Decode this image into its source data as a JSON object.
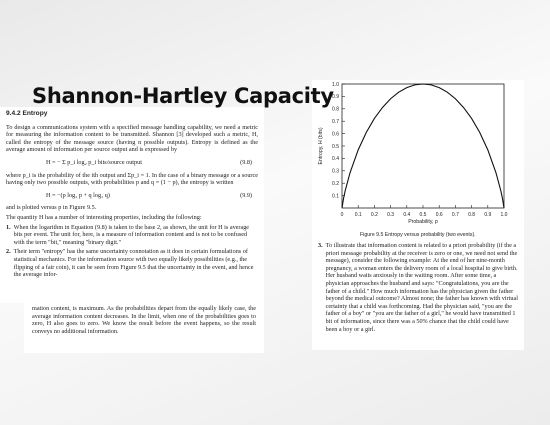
{
  "slide": {
    "title": "Shannon-Hartley Capacity"
  },
  "section": {
    "heading": "9.4.2 Entropy"
  },
  "paragraphs": {
    "intro": "To design a communications system with a specified message handling capability, we need a metric for measuring the information content to be transmitted. Shannon [3] developed such a metric, H, called the entropy of the message source (having n possible outputs). Entropy is defined as the average amount of information per source output and is expressed by",
    "where": "where p_i is the probability of the ith output and Σp_i = 1. In the case of a binary message or a source having only two possible outputs, with probabilities p and q = (1 − p), the entropy is written",
    "plotted": "and is plotted versus p in Figure 9.5.",
    "props": "The quantity H has a number of interesting properties, including the following:",
    "bottom": "mation content, is maximum. As the probabilities depart from the equally likely case, the average information content decreases. In the limit, when one of the probabilities goes to zero, H also goes to zero. We know the result before the event happens, so the result conveys no additional information."
  },
  "equations": [
    {
      "expr": "H = − Σ p_i log₂ p_i   bits/source output",
      "num": "(9.8)"
    },
    {
      "expr": "H = −(p log₂ p + q log₂ q)",
      "num": "(9.9)"
    }
  ],
  "list_items": [
    {
      "n": "1.",
      "text": "When the logarithm in Equation (9.8) is taken to the base 2, as shown, the unit for H is average bits per event. The unit for, here, is a measure of information content and is not to be confused with the term \"bit,\" meaning \"binary digit.\""
    },
    {
      "n": "2.",
      "text": "Their term \"entropy\" has the same uncertainty connotation as it does in certain formulations of statistical mechanics. For the information source with two equally likely possibilities (e.g., the flipping of a fair coin), it can be seen from Figure 9.5 that the uncertainty in the event, and hence the average infor-"
    },
    {
      "n": "3.",
      "text": "To illustrate that information content is related to a priori probability (if the a priori message probability at the receiver is zero or one, we need not send the message), consider the following example: At the end of her nine-month pregnancy, a woman enters the delivery room of a local hospital to give birth. Her husband waits anxiously in the waiting room. After some time, a physician approaches the husband and says: \"Congratulations, you are the father of a child.\" How much information has the physician given the father beyond the medical outcome? Almost none; the father has known with virtual certainty that a child was forthcoming. Had the physician said, \"you are the father of a boy\" or \"you are the father of a girl,\" he would have transmitted 1 bit of information, since there was a 50% chance that the child could have been a boy or a girl."
    }
  ],
  "chart_data": {
    "type": "line",
    "title": "",
    "caption": "Figure 9.5   Entropy versus probability (two events).",
    "xlabel": "Probability, p",
    "ylabel": "Entropy, H (bits)",
    "xlim": [
      0,
      1.0
    ],
    "ylim": [
      0,
      1.0
    ],
    "xticks": [
      "0",
      "0.1",
      "0.2",
      "0.3",
      "0.4",
      "0.5",
      "0.6",
      "0.7",
      "0.8",
      "0.9",
      "1.0"
    ],
    "yticks": [
      "0.1",
      "0.2",
      "0.3",
      "0.4",
      "0.5",
      "0.6",
      "0.7",
      "0.8",
      "0.9",
      "1.0"
    ],
    "grid": false,
    "x": [
      0,
      0.01,
      0.02,
      0.05,
      0.1,
      0.15,
      0.2,
      0.25,
      0.3,
      0.35,
      0.4,
      0.45,
      0.5,
      0.55,
      0.6,
      0.65,
      0.7,
      0.75,
      0.8,
      0.85,
      0.9,
      0.95,
      0.98,
      0.99,
      1.0
    ],
    "y": [
      0,
      0.081,
      0.141,
      0.286,
      0.469,
      0.61,
      0.722,
      0.811,
      0.881,
      0.934,
      0.971,
      0.993,
      1.0,
      0.993,
      0.971,
      0.934,
      0.881,
      0.811,
      0.722,
      0.61,
      0.469,
      0.286,
      0.141,
      0.081,
      0
    ]
  }
}
